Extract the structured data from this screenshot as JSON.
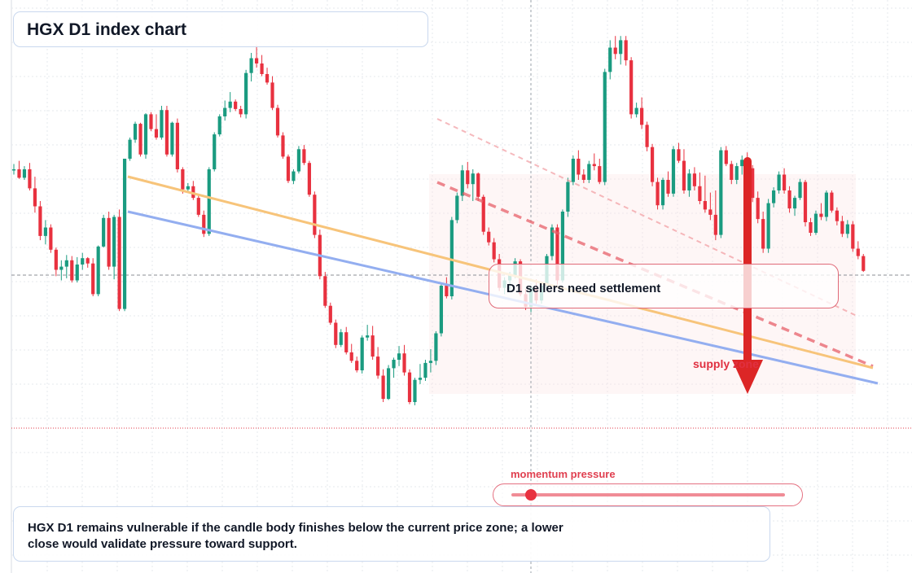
{
  "title": "HGX D1 index chart",
  "callout": "D1 sellers need settlement",
  "supply_label": "supply zone",
  "momentum": {
    "label": "momentum pressure",
    "level": 0.07
  },
  "footer": "HGX D1 remains vulnerable if the candle body finishes below the current price zone; a lower close would validate pressure toward support.",
  "colors": {
    "up": "#1a9b80",
    "down": "#e8313f",
    "trendline_orange": "#f7c47a",
    "trendline_blue": "#93aef0",
    "resistance_dashed": "#e8616b",
    "arrow": "#dc2626"
  },
  "chart_data": {
    "type": "candlestick",
    "title": "HGX D1 index chart",
    "xlabel": "",
    "ylabel": "",
    "grid": true,
    "scale": "relative price (axis not printed)",
    "candles": [
      [
        1.0,
        1.05,
        0.95,
        1.0
      ],
      [
        1.0,
        1.08,
        0.91,
        0.92
      ],
      [
        0.92,
        1.03,
        0.9,
        1.0
      ],
      [
        1.0,
        1.06,
        0.8,
        0.82
      ],
      [
        0.82,
        0.93,
        0.59,
        0.65
      ],
      [
        0.65,
        0.7,
        0.33,
        0.37
      ],
      [
        0.37,
        0.52,
        0.29,
        0.45
      ],
      [
        0.45,
        0.48,
        0.21,
        0.24
      ],
      [
        0.24,
        0.26,
        -0.01,
        0.05
      ],
      [
        0.05,
        0.14,
        -0.05,
        0.08
      ],
      [
        0.08,
        0.19,
        -0.03,
        0.14
      ],
      [
        0.14,
        0.18,
        -0.07,
        -0.05
      ],
      [
        -0.05,
        0.17,
        -0.07,
        0.1
      ],
      [
        0.1,
        0.21,
        0.05,
        0.16
      ],
      [
        0.16,
        0.17,
        0.07,
        0.11
      ],
      [
        0.11,
        0.16,
        -0.2,
        -0.18
      ],
      [
        -0.18,
        0.28,
        -0.2,
        0.27
      ],
      [
        0.27,
        0.57,
        0.26,
        0.54
      ],
      [
        0.54,
        0.6,
        0.05,
        0.08
      ],
      [
        0.08,
        0.57,
        -0.04,
        0.55
      ],
      [
        0.55,
        0.62,
        -0.34,
        -0.32
      ],
      [
        -0.32,
        1.1,
        -0.34,
        1.1
      ],
      [
        1.1,
        1.3,
        1.08,
        1.28
      ],
      [
        1.28,
        1.45,
        1.25,
        1.43
      ],
      [
        1.43,
        1.44,
        1.12,
        1.14
      ],
      [
        1.14,
        1.53,
        1.1,
        1.52
      ],
      [
        1.52,
        1.54,
        1.36,
        1.38
      ],
      [
        1.38,
        1.52,
        1.28,
        1.3
      ],
      [
        1.3,
        1.6,
        1.28,
        1.56
      ],
      [
        1.56,
        1.6,
        1.12,
        1.14
      ],
      [
        1.14,
        1.45,
        1.12,
        1.44
      ],
      [
        1.44,
        1.48,
        0.97,
        1.0
      ],
      [
        1.0,
        1.02,
        0.77,
        0.81
      ],
      [
        0.81,
        0.87,
        0.79,
        0.84
      ],
      [
        0.84,
        0.89,
        0.71,
        0.73
      ],
      [
        0.73,
        0.76,
        0.55,
        0.57
      ],
      [
        0.57,
        0.61,
        0.36,
        0.39
      ],
      [
        0.39,
        1.02,
        0.37,
        1.0
      ],
      [
        1.0,
        1.35,
        0.98,
        1.33
      ],
      [
        1.33,
        1.52,
        1.31,
        1.5
      ],
      [
        1.5,
        1.65,
        1.46,
        1.58
      ],
      [
        1.58,
        1.73,
        1.54,
        1.64
      ],
      [
        1.64,
        1.66,
        1.55,
        1.57
      ],
      [
        1.57,
        1.6,
        1.49,
        1.52
      ],
      [
        1.52,
        1.94,
        1.48,
        1.91
      ],
      [
        1.91,
        2.1,
        1.83,
        2.05
      ],
      [
        2.05,
        2.18,
        1.96,
        2.0
      ],
      [
        2.0,
        2.08,
        1.88,
        1.9
      ],
      [
        1.9,
        1.96,
        1.8,
        1.82
      ],
      [
        1.82,
        1.88,
        1.56,
        1.58
      ],
      [
        1.58,
        1.61,
        1.3,
        1.32
      ],
      [
        1.32,
        1.35,
        1.1,
        1.12
      ],
      [
        1.12,
        1.14,
        0.87,
        0.89
      ],
      [
        0.89,
        1.0,
        0.86,
        0.98
      ],
      [
        0.98,
        1.22,
        0.96,
        1.19
      ],
      [
        1.19,
        1.23,
        1.04,
        1.06
      ],
      [
        1.06,
        1.08,
        0.74,
        0.76
      ],
      [
        0.76,
        0.79,
        0.35,
        0.38
      ],
      [
        0.38,
        0.43,
        -0.04,
        -0.01
      ],
      [
        -0.01,
        0.03,
        -0.31,
        -0.29
      ],
      [
        -0.29,
        -0.26,
        -0.47,
        -0.45
      ],
      [
        -0.45,
        -0.42,
        -0.69,
        -0.66
      ],
      [
        -0.66,
        -0.51,
        -0.68,
        -0.54
      ],
      [
        -0.54,
        -0.49,
        -0.75,
        -0.73
      ],
      [
        -0.73,
        -0.65,
        -0.83,
        -0.81
      ],
      [
        -0.81,
        -0.77,
        -0.92,
        -0.9
      ],
      [
        -0.9,
        -0.57,
        -0.93,
        -0.59
      ],
      [
        -0.59,
        -0.47,
        -0.62,
        -0.57
      ],
      [
        -0.57,
        -0.48,
        -0.8,
        -0.77
      ],
      [
        -0.77,
        -0.68,
        -0.98,
        -0.95
      ],
      [
        -0.95,
        -0.89,
        -1.2,
        -1.17
      ],
      [
        -1.17,
        -0.85,
        -1.18,
        -0.88
      ],
      [
        -0.88,
        -0.78,
        -0.97,
        -0.8
      ],
      [
        -0.8,
        -0.67,
        -0.86,
        -0.74
      ],
      [
        -0.74,
        -0.66,
        -0.95,
        -0.92
      ],
      [
        -0.92,
        -0.89,
        -1.22,
        -1.2
      ],
      [
        -1.2,
        -0.97,
        -1.23,
        -0.99
      ],
      [
        -0.99,
        -0.84,
        -1.03,
        -0.97
      ],
      [
        -0.97,
        -0.8,
        -1.0,
        -0.83
      ],
      [
        -0.83,
        -0.7,
        -0.92,
        -0.81
      ],
      [
        -0.81,
        -0.53,
        -0.85,
        -0.55
      ],
      [
        -0.55,
        -0.08,
        -0.58,
        -0.1
      ],
      [
        -0.1,
        -0.02,
        -0.22,
        -0.2
      ],
      [
        -0.2,
        0.55,
        -0.23,
        0.52
      ],
      [
        0.52,
        0.78,
        0.49,
        0.75
      ],
      [
        0.75,
        1.04,
        0.7,
        0.99
      ],
      [
        0.99,
        1.07,
        0.82,
        0.86
      ],
      [
        0.86,
        1.0,
        0.7,
        0.96
      ],
      [
        0.96,
        0.97,
        0.7,
        0.74
      ],
      [
        0.74,
        0.76,
        0.38,
        0.41
      ],
      [
        0.41,
        0.45,
        0.28,
        0.31
      ],
      [
        0.31,
        0.35,
        0.12,
        0.15
      ],
      [
        0.15,
        0.2,
        -0.15,
        -0.12
      ],
      [
        -0.12,
        -0.02,
        -0.18,
        -0.05
      ],
      [
        -0.05,
        0.03,
        -0.14,
        0.0
      ],
      [
        0.0,
        0.16,
        -0.03,
        0.13
      ],
      [
        0.13,
        0.15,
        -0.2,
        -0.18
      ],
      [
        -0.18,
        -0.13,
        -0.33,
        -0.3
      ],
      [
        -0.3,
        -0.1,
        -0.35,
        -0.12
      ],
      [
        -0.12,
        -0.04,
        -0.27,
        -0.24
      ],
      [
        -0.24,
        -0.07,
        -0.27,
        -0.1
      ],
      [
        -0.1,
        0.2,
        -0.14,
        0.18
      ],
      [
        0.18,
        0.48,
        0.14,
        0.45
      ],
      [
        0.45,
        0.48,
        -0.09,
        -0.05
      ],
      [
        -0.05,
        0.62,
        -0.07,
        0.6
      ],
      [
        0.6,
        0.92,
        0.55,
        0.88
      ],
      [
        0.88,
        1.13,
        0.85,
        1.1
      ],
      [
        1.1,
        1.18,
        0.9,
        0.95
      ],
      [
        0.95,
        1.0,
        0.87,
        0.9
      ],
      [
        0.9,
        1.08,
        0.87,
        1.05
      ],
      [
        1.05,
        1.15,
        0.99,
        1.03
      ],
      [
        1.03,
        1.1,
        0.86,
        0.88
      ],
      [
        0.88,
        1.95,
        0.85,
        1.92
      ],
      [
        1.92,
        2.22,
        1.85,
        2.15
      ],
      [
        2.15,
        2.26,
        2.04,
        2.09
      ],
      [
        2.09,
        2.26,
        1.99,
        2.22
      ],
      [
        2.22,
        2.26,
        1.98,
        2.03
      ],
      [
        2.03,
        2.06,
        1.48,
        1.52
      ],
      [
        1.52,
        1.63,
        1.49,
        1.58
      ],
      [
        1.58,
        1.68,
        1.38,
        1.42
      ],
      [
        1.42,
        1.45,
        1.17,
        1.21
      ],
      [
        1.21,
        1.24,
        0.84,
        0.88
      ],
      [
        0.88,
        0.92,
        0.62,
        0.66
      ],
      [
        0.66,
        0.92,
        0.62,
        0.9
      ],
      [
        0.9,
        0.98,
        0.74,
        0.77
      ],
      [
        0.77,
        1.22,
        0.74,
        1.19
      ],
      [
        1.19,
        1.25,
        1.06,
        1.08
      ],
      [
        1.08,
        1.19,
        0.77,
        0.8
      ],
      [
        0.8,
        1.0,
        0.74,
        0.96
      ],
      [
        0.96,
        1.02,
        0.8,
        0.84
      ],
      [
        0.84,
        0.97,
        0.67,
        0.7
      ],
      [
        0.7,
        0.94,
        0.59,
        0.62
      ],
      [
        0.62,
        0.78,
        0.52,
        0.57
      ],
      [
        0.57,
        0.8,
        0.33,
        0.38
      ],
      [
        0.38,
        1.21,
        0.35,
        1.18
      ],
      [
        1.18,
        1.22,
        1.03,
        1.05
      ],
      [
        1.05,
        1.08,
        0.86,
        0.9
      ],
      [
        0.9,
        1.06,
        0.86,
        1.03
      ],
      [
        1.03,
        1.13,
        0.95,
        1.09
      ],
      [
        1.09,
        1.16,
        0.99,
        1.01
      ],
      [
        1.01,
        1.04,
        0.69,
        0.73
      ],
      [
        0.73,
        0.79,
        0.49,
        0.53
      ],
      [
        0.53,
        0.6,
        0.21,
        0.25
      ],
      [
        0.25,
        0.72,
        0.21,
        0.68
      ],
      [
        0.68,
        0.83,
        0.64,
        0.8
      ],
      [
        0.8,
        0.98,
        0.77,
        0.95
      ],
      [
        0.95,
        1.01,
        0.77,
        0.8
      ],
      [
        0.8,
        0.84,
        0.59,
        0.63
      ],
      [
        0.63,
        0.75,
        0.56,
        0.73
      ],
      [
        0.73,
        0.91,
        0.71,
        0.88
      ],
      [
        0.88,
        0.9,
        0.46,
        0.5
      ],
      [
        0.5,
        0.54,
        0.37,
        0.4
      ],
      [
        0.4,
        0.61,
        0.38,
        0.58
      ],
      [
        0.58,
        0.68,
        0.52,
        0.55
      ],
      [
        0.55,
        0.8,
        0.51,
        0.78
      ],
      [
        0.78,
        0.8,
        0.59,
        0.61
      ],
      [
        0.61,
        0.64,
        0.47,
        0.51
      ],
      [
        0.51,
        0.56,
        0.36,
        0.39
      ],
      [
        0.39,
        0.52,
        0.35,
        0.48
      ],
      [
        0.48,
        0.51,
        0.22,
        0.25
      ],
      [
        0.25,
        0.32,
        0.15,
        0.18
      ],
      [
        0.18,
        0.2,
        0.03,
        0.04
      ]
    ]
  }
}
